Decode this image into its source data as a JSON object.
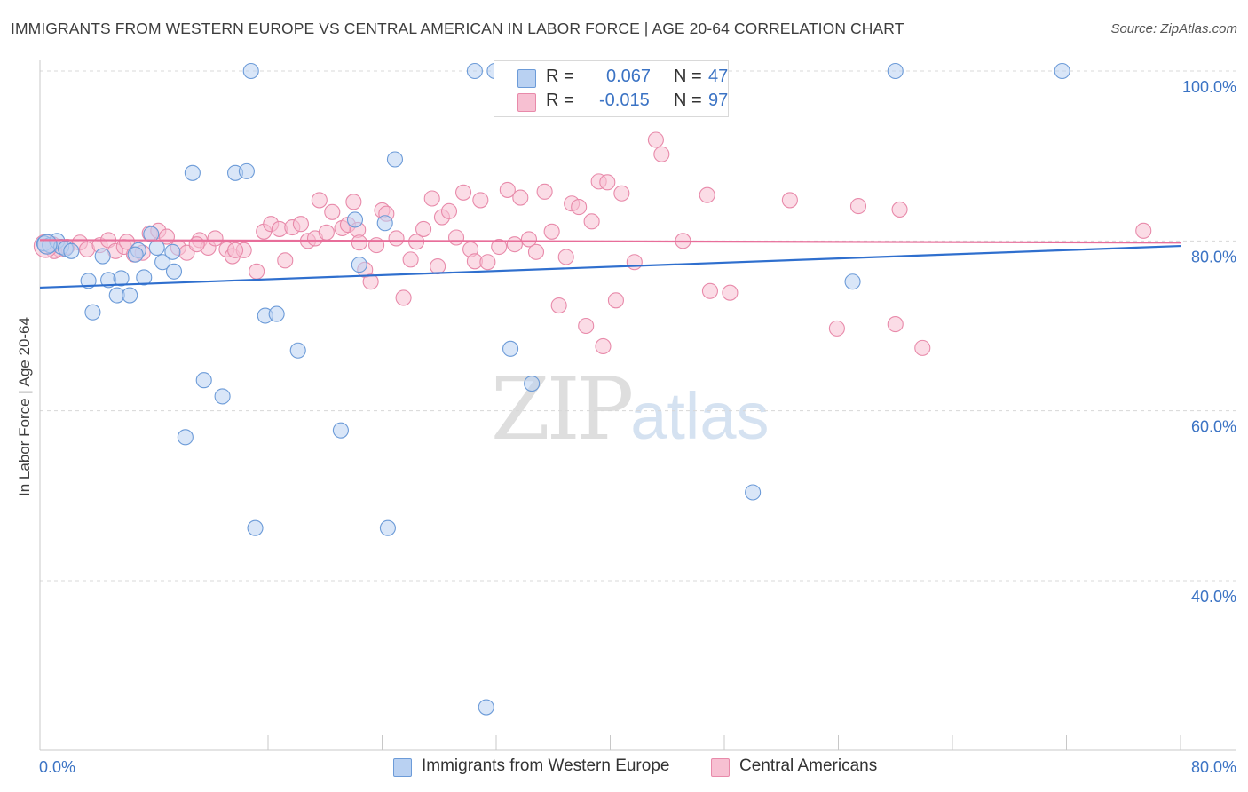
{
  "header": {
    "title": "IMMIGRANTS FROM WESTERN EUROPE VS CENTRAL AMERICAN IN LABOR FORCE | AGE 20-64 CORRELATION CHART",
    "source": "Source: ZipAtlas.com"
  },
  "watermark": {
    "zip": "ZIP",
    "atlas": "atlas"
  },
  "legend_top": {
    "rows": [
      {
        "r_label": "R =",
        "r_value": "0.067",
        "n_label": "N =",
        "n_value": "47"
      },
      {
        "r_label": "R =",
        "r_value": "-0.015",
        "n_label": "N =",
        "n_value": "97"
      }
    ]
  },
  "colors": {
    "blue_fill": "#b9d1f2",
    "blue_stroke": "#6c9bd8",
    "blue_line": "#2f6fce",
    "pink_fill": "#f7c0d2",
    "pink_stroke": "#e88aaa",
    "pink_line": "#e86e9a",
    "axis_label": "#3b73c4",
    "grid": "#d8d8d8"
  },
  "chart_data": {
    "type": "scatter",
    "title": "IMMIGRANTS FROM WESTERN EUROPE VS CENTRAL AMERICAN IN LABOR FORCE | AGE 20-64 CORRELATION CHART",
    "xlabel": "",
    "ylabel": "In Labor Force | Age 20-64",
    "xlim": [
      0,
      80
    ],
    "ylim": [
      20,
      103
    ],
    "x_tick_labels": [
      "0.0%",
      "80.0%"
    ],
    "y_ticks": [
      40,
      60,
      80,
      100
    ],
    "y_tick_labels": [
      "40.0%",
      "60.0%",
      "80.0%",
      "100.0%"
    ],
    "grid": true,
    "legend_placement": "bottom",
    "series": [
      {
        "name": "Immigrants from Western Europe",
        "color": "#6c9bd8",
        "trend": {
          "x": [
            0,
            80
          ],
          "y": [
            74.5,
            79.4
          ]
        },
        "points": [
          {
            "x": 0.3,
            "y": 79.7
          },
          {
            "x": 0.7,
            "y": 79.5
          },
          {
            "x": 1.2,
            "y": 80.0
          },
          {
            "x": 1.5,
            "y": 79.3
          },
          {
            "x": 1.8,
            "y": 79.1
          },
          {
            "x": 3.4,
            "y": 75.3
          },
          {
            "x": 3.7,
            "y": 71.6
          },
          {
            "x": 4.4,
            "y": 78.2
          },
          {
            "x": 4.8,
            "y": 75.4
          },
          {
            "x": 5.4,
            "y": 73.6
          },
          {
            "x": 5.7,
            "y": 75.6
          },
          {
            "x": 6.3,
            "y": 73.6
          },
          {
            "x": 6.9,
            "y": 78.9
          },
          {
            "x": 7.3,
            "y": 75.7
          },
          {
            "x": 7.8,
            "y": 80.8
          },
          {
            "x": 8.2,
            "y": 79.2
          },
          {
            "x": 8.6,
            "y": 77.5
          },
          {
            "x": 9.4,
            "y": 76.4
          },
          {
            "x": 10.2,
            "y": 56.9
          },
          {
            "x": 10.7,
            "y": 88.0
          },
          {
            "x": 11.5,
            "y": 63.6
          },
          {
            "x": 12.8,
            "y": 61.7
          },
          {
            "x": 13.7,
            "y": 88.0
          },
          {
            "x": 14.5,
            "y": 88.2
          },
          {
            "x": 14.8,
            "y": 100.0
          },
          {
            "x": 15.1,
            "y": 46.2
          },
          {
            "x": 15.8,
            "y": 71.2
          },
          {
            "x": 16.6,
            "y": 71.4
          },
          {
            "x": 18.1,
            "y": 67.1
          },
          {
            "x": 21.1,
            "y": 57.7
          },
          {
            "x": 22.1,
            "y": 82.5
          },
          {
            "x": 22.4,
            "y": 77.2
          },
          {
            "x": 24.2,
            "y": 82.1
          },
          {
            "x": 24.4,
            "y": 46.2
          },
          {
            "x": 24.9,
            "y": 89.6
          },
          {
            "x": 30.5,
            "y": 100.0
          },
          {
            "x": 31.3,
            "y": 25.1
          },
          {
            "x": 31.9,
            "y": 100.0
          },
          {
            "x": 33.0,
            "y": 67.3
          },
          {
            "x": 34.5,
            "y": 63.2
          },
          {
            "x": 50.0,
            "y": 50.4
          },
          {
            "x": 57.0,
            "y": 75.2
          },
          {
            "x": 60.0,
            "y": 100.0
          },
          {
            "x": 71.7,
            "y": 100.0
          },
          {
            "x": 9.3,
            "y": 78.7
          },
          {
            "x": 2.2,
            "y": 78.8
          },
          {
            "x": 6.7,
            "y": 78.4
          }
        ]
      },
      {
        "name": "Central Americans",
        "color": "#e88aaa",
        "trend": {
          "x": [
            0,
            80
          ],
          "y": [
            80.1,
            79.8
          ]
        },
        "points": [
          {
            "x": 0.4,
            "y": 79.4
          },
          {
            "x": 0.9,
            "y": 79.6
          },
          {
            "x": 1.4,
            "y": 79.0
          },
          {
            "x": 1.9,
            "y": 79.3
          },
          {
            "x": 2.8,
            "y": 79.8
          },
          {
            "x": 3.3,
            "y": 79.0
          },
          {
            "x": 4.2,
            "y": 79.5
          },
          {
            "x": 4.8,
            "y": 80.1
          },
          {
            "x": 5.3,
            "y": 78.8
          },
          {
            "x": 5.9,
            "y": 79.3
          },
          {
            "x": 6.1,
            "y": 79.9
          },
          {
            "x": 6.6,
            "y": 78.4
          },
          {
            "x": 7.2,
            "y": 78.6
          },
          {
            "x": 7.7,
            "y": 80.9
          },
          {
            "x": 8.3,
            "y": 81.2
          },
          {
            "x": 8.9,
            "y": 80.5
          },
          {
            "x": 9.7,
            "y": 79.2
          },
          {
            "x": 10.3,
            "y": 78.6
          },
          {
            "x": 11.2,
            "y": 80.1
          },
          {
            "x": 11.8,
            "y": 79.2
          },
          {
            "x": 12.3,
            "y": 80.3
          },
          {
            "x": 13.1,
            "y": 79.0
          },
          {
            "x": 13.5,
            "y": 78.2
          },
          {
            "x": 14.3,
            "y": 78.9
          },
          {
            "x": 15.2,
            "y": 76.4
          },
          {
            "x": 15.7,
            "y": 81.1
          },
          {
            "x": 16.2,
            "y": 82.0
          },
          {
            "x": 16.8,
            "y": 81.4
          },
          {
            "x": 17.2,
            "y": 77.7
          },
          {
            "x": 17.7,
            "y": 81.6
          },
          {
            "x": 18.3,
            "y": 82.0
          },
          {
            "x": 18.8,
            "y": 80.0
          },
          {
            "x": 19.3,
            "y": 80.3
          },
          {
            "x": 19.6,
            "y": 84.8
          },
          {
            "x": 20.1,
            "y": 81.0
          },
          {
            "x": 20.5,
            "y": 83.4
          },
          {
            "x": 21.2,
            "y": 81.5
          },
          {
            "x": 21.6,
            "y": 81.9
          },
          {
            "x": 22.0,
            "y": 84.6
          },
          {
            "x": 22.3,
            "y": 81.3
          },
          {
            "x": 22.8,
            "y": 76.6
          },
          {
            "x": 23.2,
            "y": 75.2
          },
          {
            "x": 23.6,
            "y": 79.5
          },
          {
            "x": 24.0,
            "y": 83.6
          },
          {
            "x": 24.3,
            "y": 83.2
          },
          {
            "x": 25.0,
            "y": 80.3
          },
          {
            "x": 25.5,
            "y": 73.3
          },
          {
            "x": 26.0,
            "y": 77.8
          },
          {
            "x": 26.4,
            "y": 79.9
          },
          {
            "x": 26.9,
            "y": 81.4
          },
          {
            "x": 27.5,
            "y": 85.0
          },
          {
            "x": 27.9,
            "y": 77.0
          },
          {
            "x": 28.2,
            "y": 82.8
          },
          {
            "x": 28.7,
            "y": 83.5
          },
          {
            "x": 29.2,
            "y": 80.4
          },
          {
            "x": 29.7,
            "y": 85.7
          },
          {
            "x": 30.2,
            "y": 79.0
          },
          {
            "x": 30.5,
            "y": 77.6
          },
          {
            "x": 30.9,
            "y": 84.8
          },
          {
            "x": 31.4,
            "y": 77.5
          },
          {
            "x": 32.2,
            "y": 79.3
          },
          {
            "x": 32.8,
            "y": 86.0
          },
          {
            "x": 33.3,
            "y": 79.6
          },
          {
            "x": 33.7,
            "y": 85.1
          },
          {
            "x": 34.3,
            "y": 80.2
          },
          {
            "x": 34.8,
            "y": 78.7
          },
          {
            "x": 35.4,
            "y": 85.8
          },
          {
            "x": 35.9,
            "y": 81.1
          },
          {
            "x": 36.4,
            "y": 72.4
          },
          {
            "x": 36.9,
            "y": 78.1
          },
          {
            "x": 37.3,
            "y": 84.4
          },
          {
            "x": 37.8,
            "y": 84.0
          },
          {
            "x": 38.3,
            "y": 70.0
          },
          {
            "x": 38.7,
            "y": 82.3
          },
          {
            "x": 39.2,
            "y": 87.0
          },
          {
            "x": 39.5,
            "y": 67.6
          },
          {
            "x": 39.8,
            "y": 86.9
          },
          {
            "x": 40.4,
            "y": 73.0
          },
          {
            "x": 40.8,
            "y": 85.6
          },
          {
            "x": 41.7,
            "y": 77.5
          },
          {
            "x": 43.2,
            "y": 91.9
          },
          {
            "x": 43.6,
            "y": 90.2
          },
          {
            "x": 45.1,
            "y": 80.0
          },
          {
            "x": 47.0,
            "y": 74.1
          },
          {
            "x": 46.8,
            "y": 85.4
          },
          {
            "x": 48.4,
            "y": 73.9
          },
          {
            "x": 52.6,
            "y": 84.8
          },
          {
            "x": 55.9,
            "y": 69.7
          },
          {
            "x": 57.4,
            "y": 84.1
          },
          {
            "x": 60.0,
            "y": 70.2
          },
          {
            "x": 60.3,
            "y": 83.7
          },
          {
            "x": 61.9,
            "y": 67.4
          },
          {
            "x": 77.4,
            "y": 81.2
          },
          {
            "x": 22.4,
            "y": 79.8
          },
          {
            "x": 11.0,
            "y": 79.6
          },
          {
            "x": 13.7,
            "y": 78.9
          },
          {
            "x": 1.0,
            "y": 78.8
          }
        ]
      }
    ]
  },
  "legend_bottom": {
    "items": [
      {
        "label": "Immigrants from Western Europe"
      },
      {
        "label": "Central Americans"
      }
    ]
  }
}
